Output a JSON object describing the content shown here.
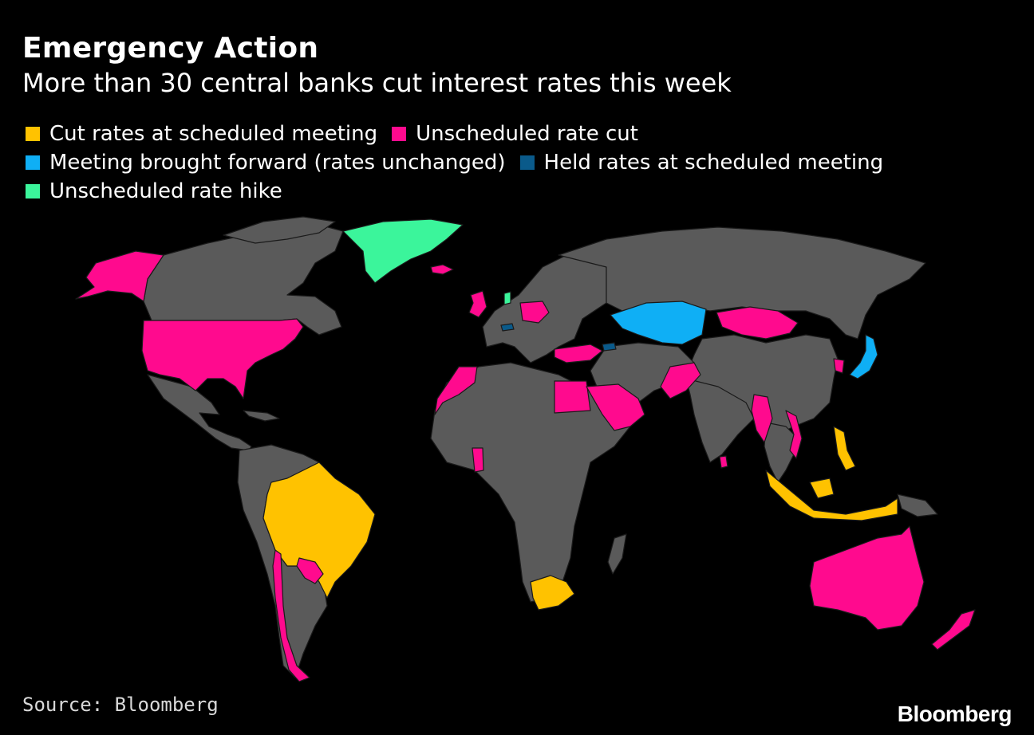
{
  "header": {
    "title": "Emergency Action",
    "subtitle": "More than 30 central banks cut interest rates this week"
  },
  "legend": [
    {
      "label": "Cut rates at scheduled meeting",
      "color": "#FFC200"
    },
    {
      "label": "Unscheduled rate cut",
      "color": "#FF0A8E"
    },
    {
      "label": "Meeting brought forward (rates unchanged)",
      "color": "#0FAFF5"
    },
    {
      "label": "Held rates at scheduled meeting",
      "color": "#0A5A8A"
    },
    {
      "label": "Unscheduled rate hike",
      "color": "#3BF59B"
    }
  ],
  "colors": {
    "background": "#000000",
    "land_default": "#5A5A5A",
    "border": "#1A1A1A"
  },
  "regions": [
    {
      "name": "Alaska",
      "category": "Unscheduled rate cut"
    },
    {
      "name": "United States",
      "category": "Unscheduled rate cut"
    },
    {
      "name": "Canada",
      "category": "none"
    },
    {
      "name": "Greenland",
      "category": "Unscheduled rate hike"
    },
    {
      "name": "Iceland",
      "category": "Unscheduled rate cut"
    },
    {
      "name": "Brazil",
      "category": "Cut rates at scheduled meeting"
    },
    {
      "name": "Paraguay",
      "category": "Unscheduled rate cut"
    },
    {
      "name": "Chile",
      "category": "Unscheduled rate cut"
    },
    {
      "name": "United Kingdom",
      "category": "Unscheduled rate cut"
    },
    {
      "name": "Poland",
      "category": "Unscheduled rate cut"
    },
    {
      "name": "Turkey",
      "category": "Unscheduled rate cut"
    },
    {
      "name": "Morocco",
      "category": "Unscheduled rate cut"
    },
    {
      "name": "Egypt",
      "category": "Unscheduled rate cut"
    },
    {
      "name": "Saudi Arabia",
      "category": "Unscheduled rate cut"
    },
    {
      "name": "Pakistan",
      "category": "Unscheduled rate cut"
    },
    {
      "name": "Mongolia",
      "category": "Unscheduled rate cut"
    },
    {
      "name": "Kazakhstan",
      "category": "Meeting brought forward (rates unchanged)"
    },
    {
      "name": "Japan",
      "category": "Meeting brought forward (rates unchanged)"
    },
    {
      "name": "South Korea",
      "category": "Unscheduled rate cut"
    },
    {
      "name": "Myanmar",
      "category": "Unscheduled rate cut"
    },
    {
      "name": "Vietnam",
      "category": "Unscheduled rate cut"
    },
    {
      "name": "Sri Lanka",
      "category": "Unscheduled rate cut"
    },
    {
      "name": "Ghana",
      "category": "Unscheduled rate cut"
    },
    {
      "name": "Philippines",
      "category": "Cut rates at scheduled meeting"
    },
    {
      "name": "Indonesia",
      "category": "Cut rates at scheduled meeting"
    },
    {
      "name": "Malaysia",
      "category": "Cut rates at scheduled meeting"
    },
    {
      "name": "South Africa",
      "category": "Cut rates at scheduled meeting"
    },
    {
      "name": "Australia",
      "category": "Unscheduled rate cut"
    },
    {
      "name": "New Zealand",
      "category": "Unscheduled rate cut"
    },
    {
      "name": "Norway",
      "category": "Unscheduled rate hike"
    },
    {
      "name": "Switzerland",
      "category": "Held rates at scheduled meeting"
    },
    {
      "name": "Georgia",
      "category": "Held rates at scheduled meeting"
    }
  ],
  "footer": {
    "source": "Source: Bloomberg",
    "logo": "Bloomberg"
  }
}
